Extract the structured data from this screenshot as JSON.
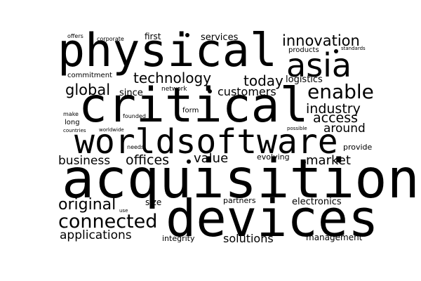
{
  "background": "#ffffff",
  "text_color": "#000000",
  "words": [
    {
      "key": "physical",
      "text": "physical"
    },
    {
      "key": "critical",
      "text": "critical"
    },
    {
      "key": "worldsoftware",
      "text": "worldsoftware"
    },
    {
      "key": "acquisition",
      "text": "acquisition"
    },
    {
      "key": "devices",
      "text": "devices"
    },
    {
      "key": "asia",
      "text": "asia"
    },
    {
      "key": "innovation",
      "text": "innovation"
    },
    {
      "key": "enable",
      "text": "enable"
    },
    {
      "key": "technology",
      "text": "technology"
    },
    {
      "key": "global",
      "text": "global"
    },
    {
      "key": "today",
      "text": "today"
    },
    {
      "key": "customers",
      "text": "customers"
    },
    {
      "key": "industry",
      "text": "industry"
    },
    {
      "key": "access",
      "text": "access"
    },
    {
      "key": "around",
      "text": "around"
    },
    {
      "key": "business",
      "text": "business"
    },
    {
      "key": "offices",
      "text": "offices"
    },
    {
      "key": "value",
      "text": "value"
    },
    {
      "key": "market",
      "text": "market"
    },
    {
      "key": "original",
      "text": "original"
    },
    {
      "key": "connected",
      "text": "connected"
    },
    {
      "key": "applications",
      "text": "applications"
    },
    {
      "key": "solutions",
      "text": "solutions"
    },
    {
      "key": "services",
      "text": "services"
    },
    {
      "key": "logistics",
      "text": "logistics"
    },
    {
      "key": "since",
      "text": "since"
    },
    {
      "key": "first",
      "text": "first"
    },
    {
      "key": "evolving",
      "text": "evolving"
    },
    {
      "key": "electronics",
      "text": "electronics"
    },
    {
      "key": "management",
      "text": "management"
    },
    {
      "key": "size",
      "text": "size"
    },
    {
      "key": "partners",
      "text": "partners"
    },
    {
      "key": "integrity",
      "text": "integrity"
    },
    {
      "key": "commitment",
      "text": "commitment"
    },
    {
      "key": "products",
      "text": "products"
    },
    {
      "key": "network",
      "text": "network"
    },
    {
      "key": "long",
      "text": "long"
    },
    {
      "key": "form",
      "text": "form"
    },
    {
      "key": "provide",
      "text": "provide"
    },
    {
      "key": "offers",
      "text": "offers"
    },
    {
      "key": "corporate",
      "text": "corporate"
    },
    {
      "key": "standards",
      "text": "standards"
    },
    {
      "key": "make",
      "text": "make"
    },
    {
      "key": "founded",
      "text": "founded"
    },
    {
      "key": "countries",
      "text": "countries"
    },
    {
      "key": "worldwide",
      "text": "worldwide"
    },
    {
      "key": "needs",
      "text": "needs"
    },
    {
      "key": "possible",
      "text": "possible"
    },
    {
      "key": "use",
      "text": "use"
    }
  ]
}
